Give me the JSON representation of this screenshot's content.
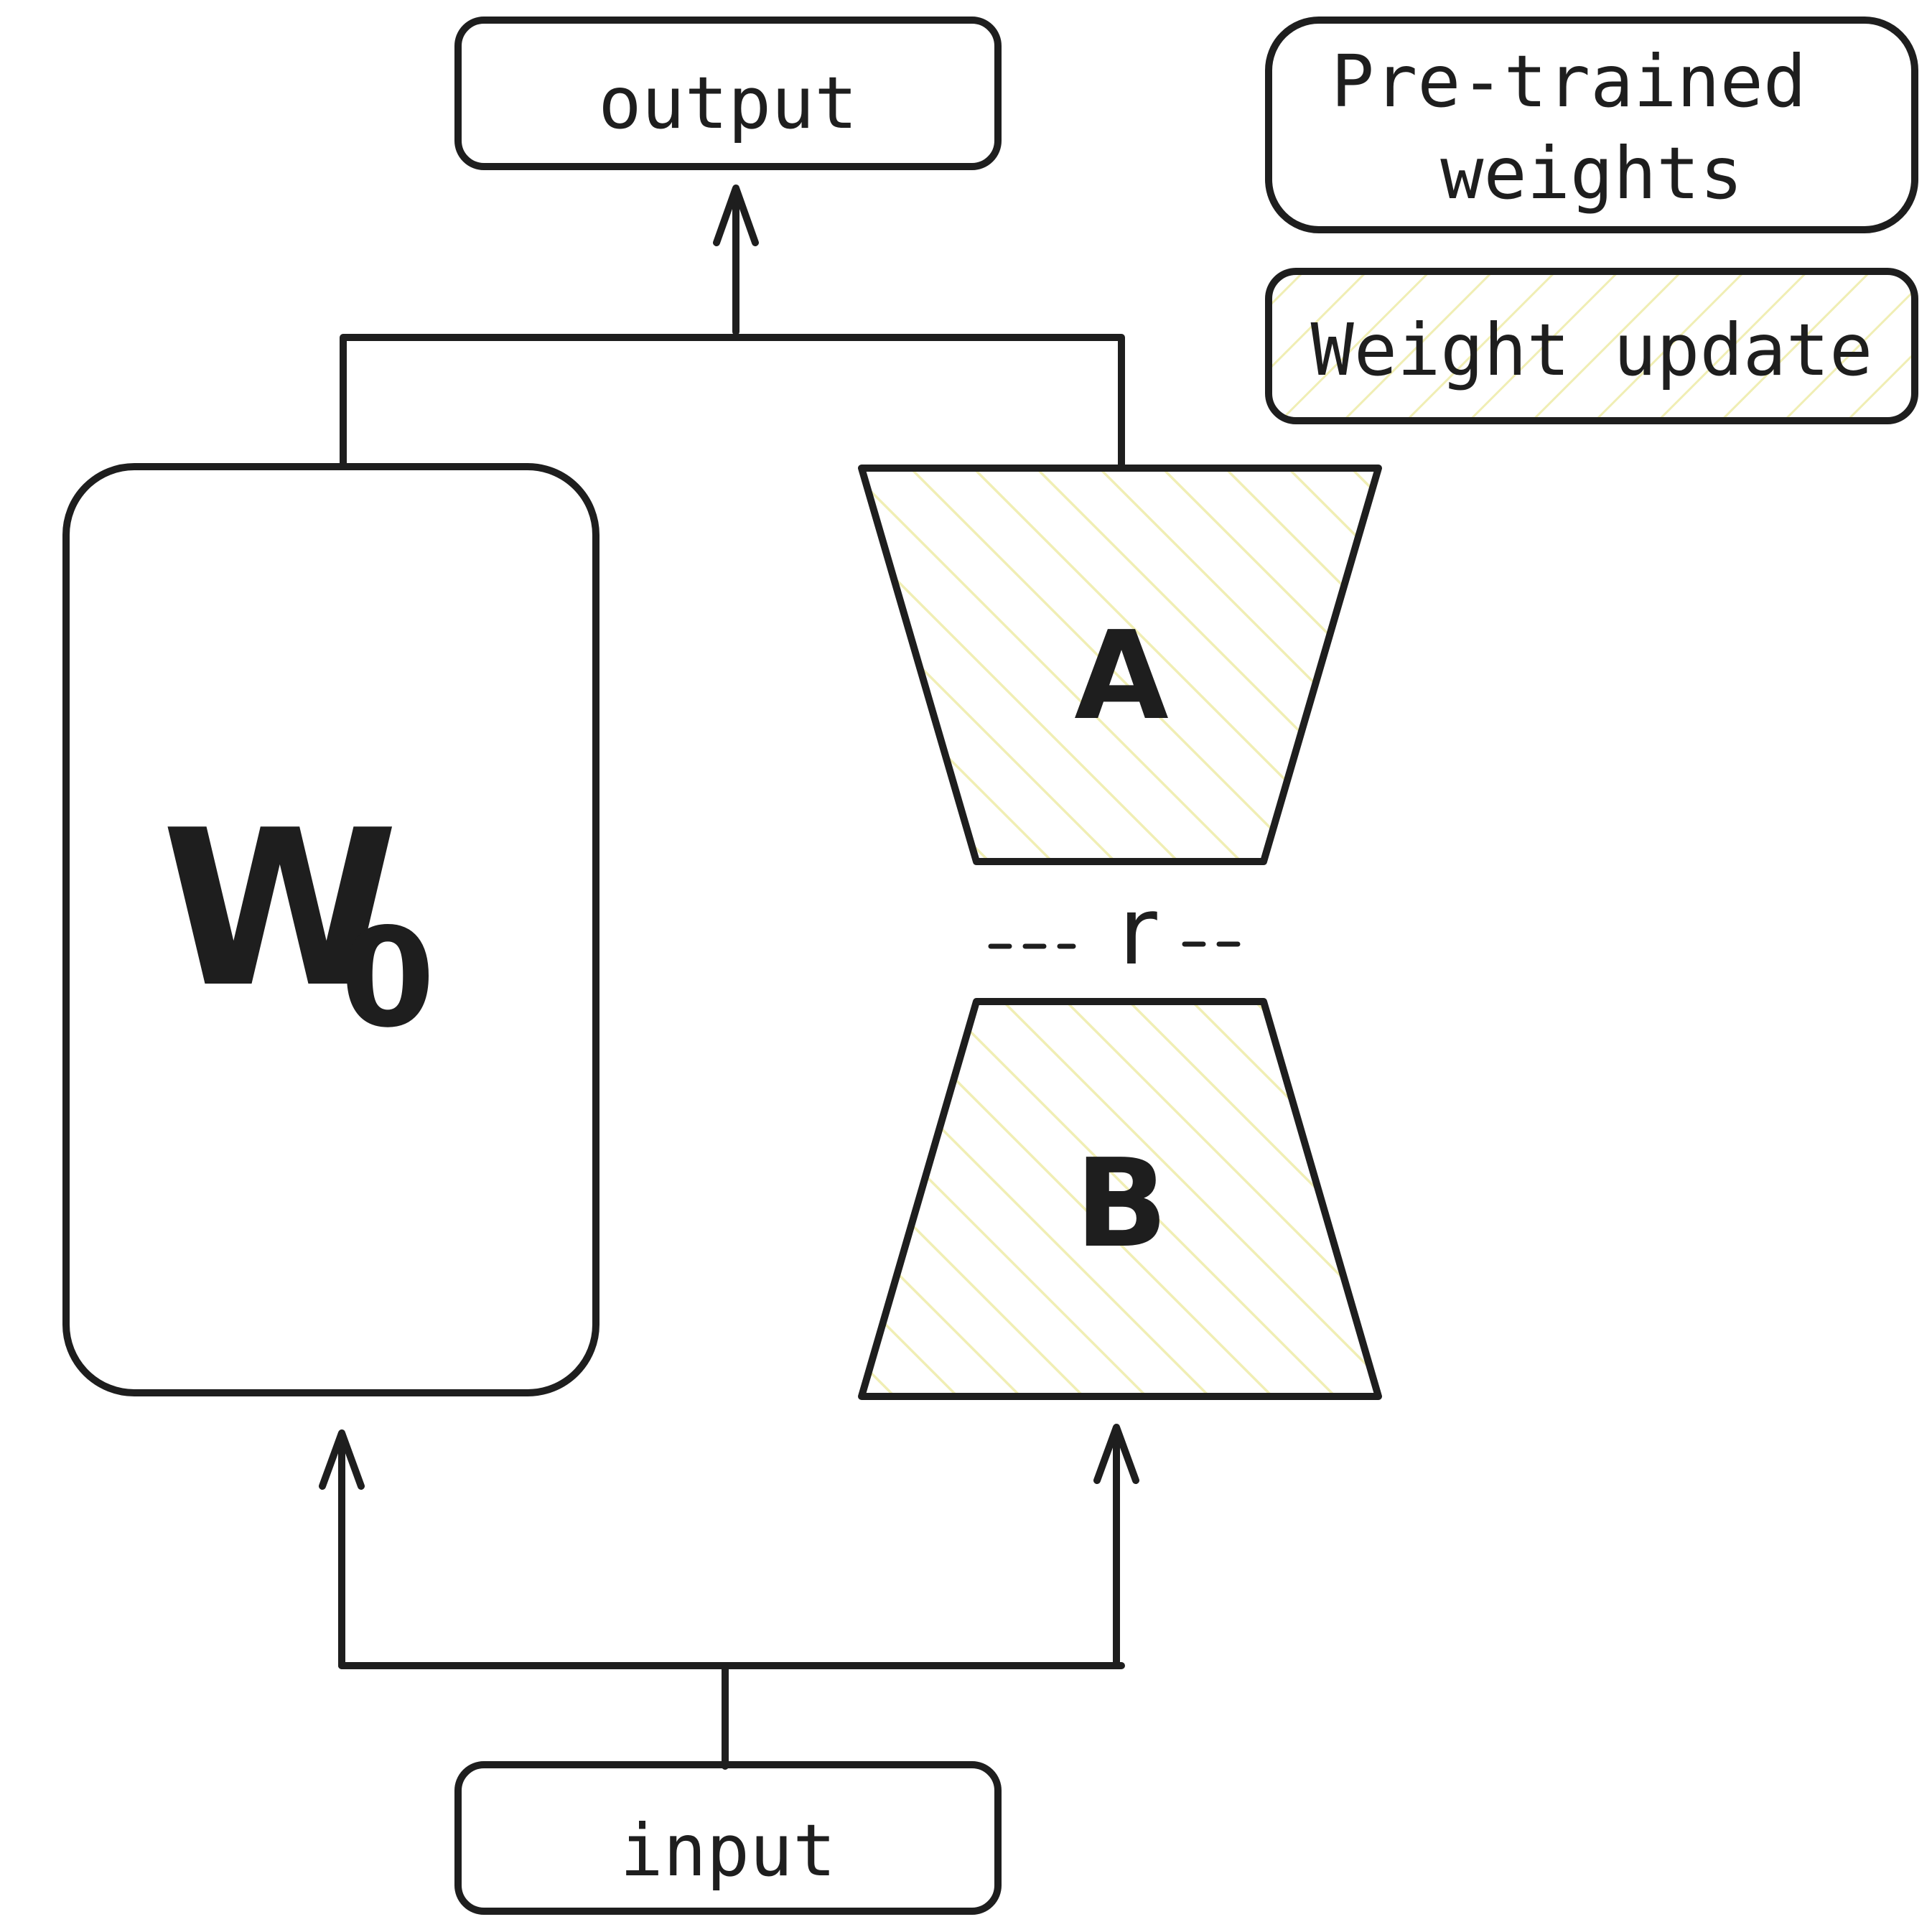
{
  "labels": {
    "output": "output",
    "input": "input",
    "w0_main": "W",
    "w0_sub": "0",
    "matrix_a": "A",
    "matrix_b": "B",
    "rank": "r"
  },
  "legend": {
    "pretrained_line1": "Pre-trained",
    "pretrained_line2": "weights",
    "weight_update": "Weight update"
  },
  "colors": {
    "io_box": "#ec6a5e",
    "pretrained": "#9bc1bc",
    "hatch": "#f0eeb4",
    "stroke": "#1e1e1e"
  }
}
